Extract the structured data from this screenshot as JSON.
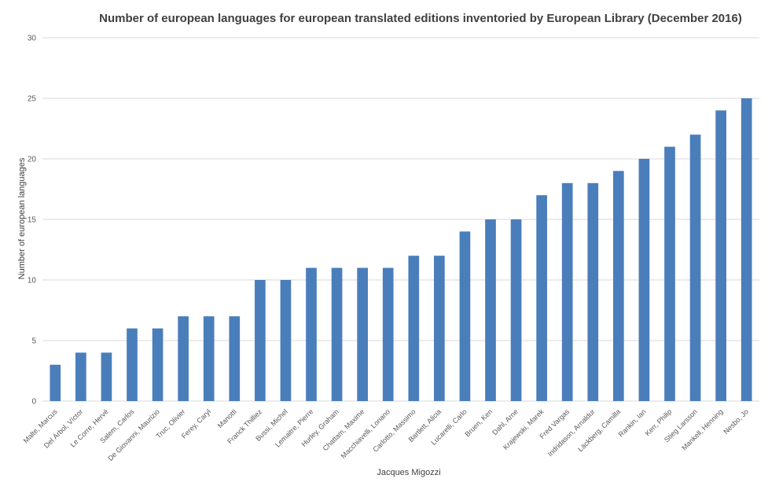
{
  "chart_data": {
    "type": "bar",
    "title": "Number of european languages for european translated editions inventoried by European Library (December 2016)",
    "xlabel": "Jacques Migozzi",
    "ylabel": "Number of european languages",
    "ylim": [
      0,
      30
    ],
    "yticks": [
      0,
      5,
      10,
      15,
      20,
      25,
      30
    ],
    "grid": true,
    "legend": "none",
    "bar_color": "#4a7ebb",
    "categories": [
      "Malte, Marcus",
      "Del Árbol, Víctor",
      "Le Corre, Hervé",
      "Salem, Carlos",
      "De Giovanni, Maurizio",
      "Truc, Olivier",
      "Ferey, Caryl",
      "Manotti",
      "Franck Thilliez",
      "Bussi, Michel",
      "Lemaitre, Pierre",
      "Hurley, Graham",
      "Chattam, Maxime",
      "Macchiavelli, Loriano",
      "Carlotto, Massimo",
      "Bartlett, Alicia",
      "Lucarelli, Carlo",
      "Bruen, Ken",
      "Dahl, Arne",
      "Krajewski, Marek",
      "Fred Vargas",
      "Indridason, Arnaldur",
      "Läckberg, Camilla",
      "Rankin, Ian",
      "Kerr, Philip",
      "Stieg Larsson",
      "Mankell, Henning",
      "Nesbo, Jo"
    ],
    "values": [
      3,
      4,
      4,
      6,
      6,
      7,
      7,
      7,
      10,
      10,
      11,
      11,
      11,
      11,
      12,
      12,
      14,
      15,
      15,
      17,
      18,
      18,
      19,
      20,
      21,
      22,
      24,
      25
    ]
  }
}
